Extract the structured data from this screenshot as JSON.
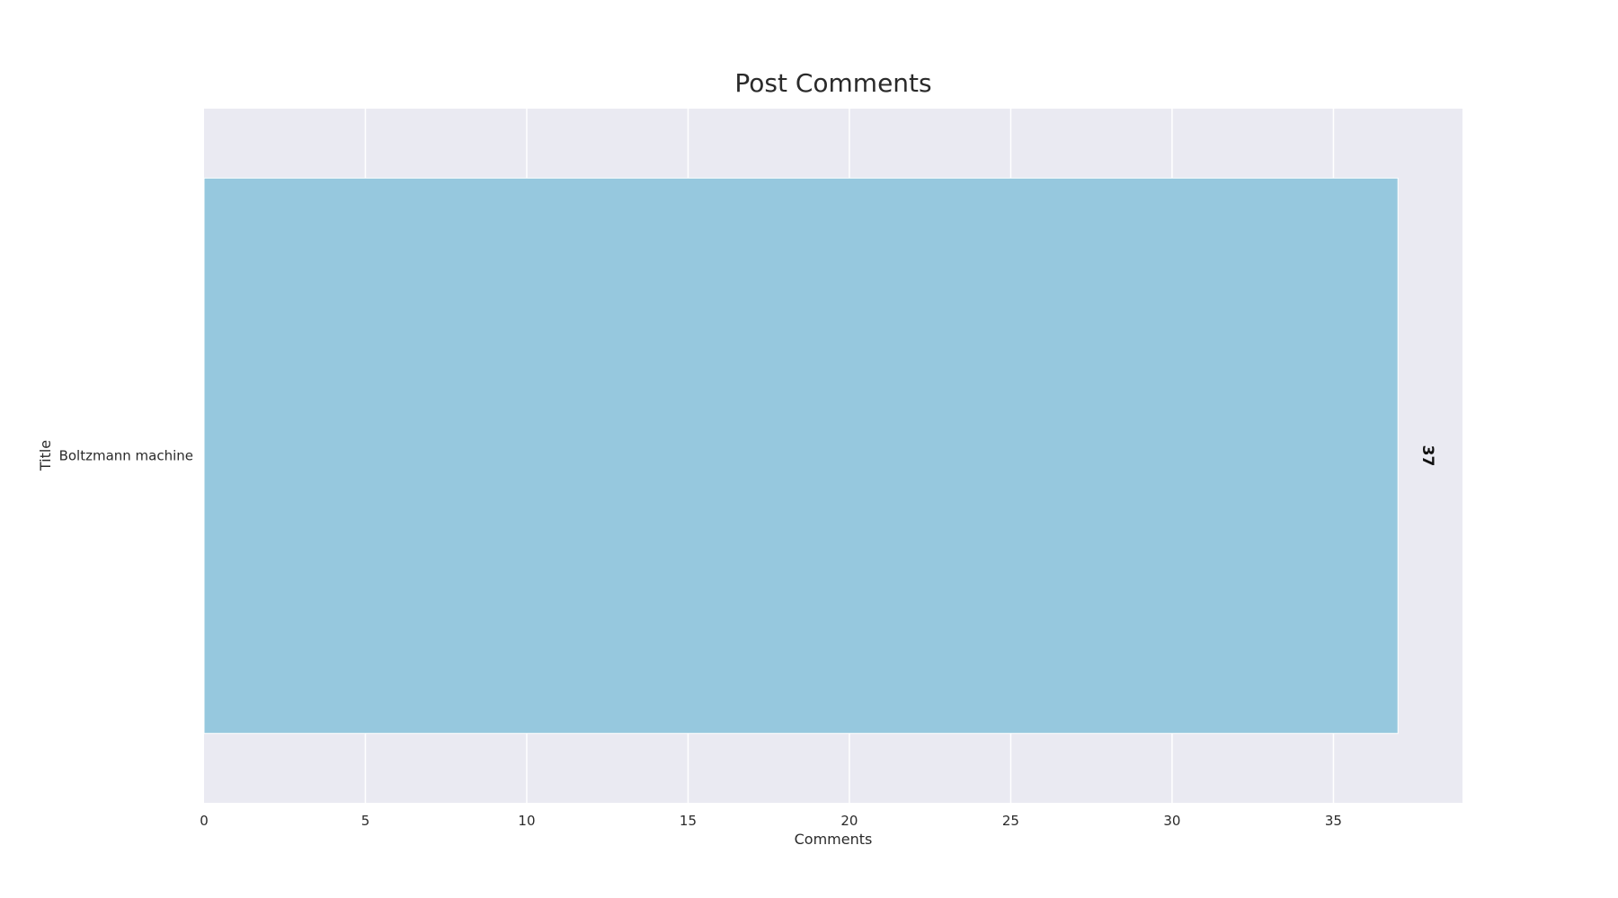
{
  "chart_data": {
    "type": "bar",
    "orientation": "horizontal",
    "title": "Post Comments",
    "xlabel": "Comments",
    "ylabel": "Title",
    "categories": [
      "Boltzmann machine"
    ],
    "values": [
      37
    ],
    "data_labels": [
      "37"
    ],
    "xlim": [
      0,
      39
    ],
    "xticks": [
      0,
      5,
      10,
      15,
      20,
      25,
      30,
      35
    ],
    "xtick_labels": [
      "0",
      "5",
      "10",
      "15",
      "20",
      "25",
      "30",
      "35"
    ],
    "grid": true,
    "legend": "none",
    "colors": {
      "bar": "#96c8de",
      "plot_background": "#eaeaf2",
      "grid": "#ffffff"
    }
  }
}
